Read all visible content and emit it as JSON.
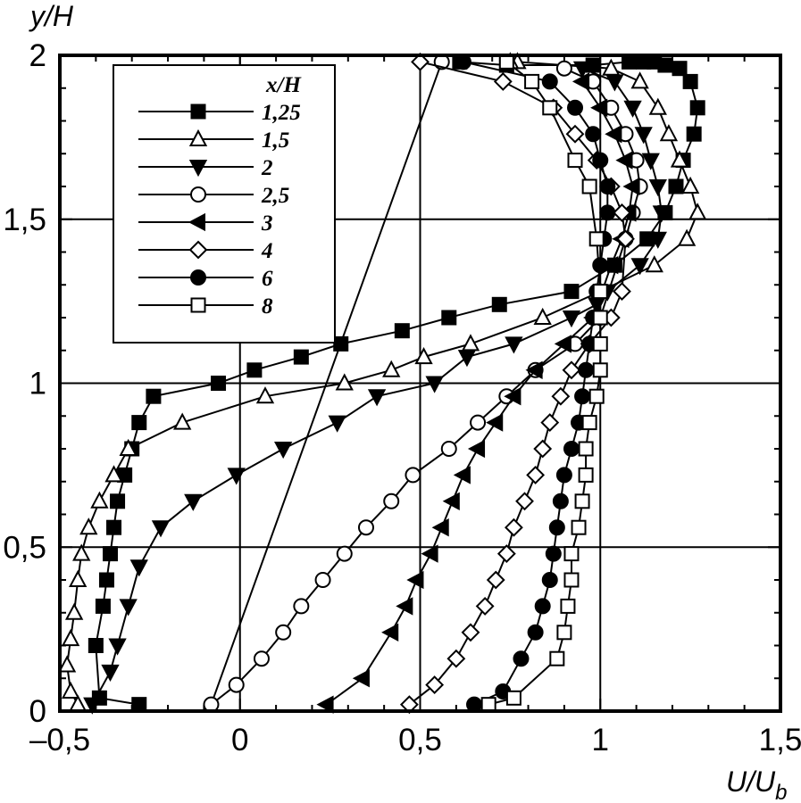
{
  "chart_data": {
    "type": "line",
    "title": "",
    "xlabel": "U/U",
    "xlabel_sub": "b",
    "ylabel": "y/H",
    "xlim": [
      -0.5,
      1.5
    ],
    "ylim": [
      0,
      2
    ],
    "xticks": [
      -0.5,
      0,
      0.5,
      1,
      1.5
    ],
    "yticks": [
      0,
      0.5,
      1,
      1.5,
      2
    ],
    "xtick_labels": [
      "–0,5",
      "0",
      "0,5",
      "1",
      "1,5"
    ],
    "ytick_labels": [
      "0",
      "0,5",
      "1",
      "1,5",
      "2"
    ],
    "grid": true,
    "legend_title": "x/H",
    "legend_position": "top-left",
    "series": [
      {
        "name": "1,25",
        "marker": "square",
        "fill": "filled",
        "x": [
          -0.28,
          -0.39,
          -0.4,
          -0.38,
          -0.37,
          -0.36,
          -0.35,
          -0.34,
          -0.32,
          -0.3,
          -0.28,
          -0.24,
          -0.06,
          0.04,
          0.17,
          0.28,
          0.45,
          0.58,
          0.72,
          0.92,
          1.04,
          1.13,
          1.18,
          1.21,
          1.23,
          1.26,
          1.27,
          1.25,
          1.22,
          1.18,
          1.15,
          1.12,
          1.08,
          0.98,
          0.74,
          0.61
        ],
        "y": [
          0.02,
          0.04,
          0.2,
          0.32,
          0.4,
          0.48,
          0.56,
          0.64,
          0.72,
          0.8,
          0.88,
          0.96,
          1.0,
          1.04,
          1.08,
          1.12,
          1.16,
          1.2,
          1.24,
          1.28,
          1.36,
          1.44,
          1.52,
          1.6,
          1.68,
          1.76,
          1.84,
          1.92,
          1.96,
          1.97,
          1.98,
          1.98,
          1.98,
          1.97,
          1.97,
          1.98
        ]
      },
      {
        "name": "1,5",
        "marker": "triangle-up",
        "fill": "open",
        "x": [
          -0.45,
          -0.47,
          -0.48,
          -0.47,
          -0.46,
          -0.45,
          -0.44,
          -0.42,
          -0.39,
          -0.35,
          -0.31,
          -0.16,
          0.07,
          0.29,
          0.42,
          0.51,
          0.64,
          0.84,
          1.0,
          1.15,
          1.24,
          1.27,
          1.25,
          1.22,
          1.19,
          1.16,
          1.11,
          1.03,
          0.77,
          0.75
        ],
        "y": [
          0.02,
          0.06,
          0.14,
          0.22,
          0.3,
          0.4,
          0.48,
          0.56,
          0.64,
          0.72,
          0.8,
          0.88,
          0.96,
          1.0,
          1.04,
          1.08,
          1.12,
          1.2,
          1.28,
          1.36,
          1.44,
          1.52,
          1.6,
          1.68,
          1.76,
          1.84,
          1.92,
          1.96,
          1.98,
          1.98
        ]
      },
      {
        "name": "2",
        "marker": "triangle-down",
        "fill": "filled",
        "x": [
          -0.41,
          -0.36,
          -0.34,
          -0.31,
          -0.28,
          -0.22,
          -0.13,
          -0.01,
          0.12,
          0.27,
          0.38,
          0.54,
          0.63,
          0.76,
          0.92,
          0.99,
          1.02,
          1.11,
          1.16,
          1.17,
          1.16,
          1.14,
          1.12,
          1.09,
          1.04,
          0.95
        ],
        "y": [
          0.02,
          0.12,
          0.2,
          0.32,
          0.44,
          0.56,
          0.64,
          0.72,
          0.8,
          0.88,
          0.96,
          1.0,
          1.08,
          1.12,
          1.2,
          1.24,
          1.28,
          1.36,
          1.44,
          1.52,
          1.6,
          1.68,
          1.76,
          1.84,
          1.92,
          1.96
        ]
      },
      {
        "name": "2,5",
        "marker": "circle",
        "fill": "open",
        "x": [
          0.56,
          -0.08,
          -0.01,
          0.06,
          0.12,
          0.17,
          0.23,
          0.29,
          0.35,
          0.42,
          0.48,
          0.58,
          0.66,
          0.74,
          0.82,
          0.93,
          1.0,
          1.07,
          1.09,
          1.11,
          1.1,
          1.07,
          1.03,
          0.98,
          0.9
        ],
        "y": [
          1.98,
          0.02,
          0.08,
          0.16,
          0.24,
          0.32,
          0.4,
          0.48,
          0.56,
          0.64,
          0.72,
          0.8,
          0.88,
          0.96,
          1.04,
          1.12,
          1.2,
          1.44,
          1.52,
          1.6,
          1.68,
          1.76,
          1.84,
          1.92,
          1.96
        ]
      },
      {
        "name": "3",
        "marker": "triangle-left",
        "fill": "filled",
        "x": [
          0.24,
          0.34,
          0.42,
          0.46,
          0.49,
          0.53,
          0.56,
          0.59,
          0.62,
          0.66,
          0.71,
          0.76,
          0.82,
          0.9,
          0.98,
          1.03,
          1.06,
          1.08,
          1.09,
          1.07,
          1.04,
          1.0,
          0.95
        ],
        "y": [
          0.02,
          0.1,
          0.24,
          0.32,
          0.4,
          0.48,
          0.56,
          0.64,
          0.72,
          0.8,
          0.88,
          0.96,
          1.04,
          1.12,
          1.2,
          1.36,
          1.44,
          1.52,
          1.6,
          1.68,
          1.76,
          1.84,
          1.92
        ]
      },
      {
        "name": "4",
        "marker": "diamond",
        "fill": "open",
        "x": [
          0.47,
          0.54,
          0.6,
          0.64,
          0.68,
          0.71,
          0.74,
          0.76,
          0.79,
          0.82,
          0.84,
          0.86,
          0.89,
          0.92,
          0.97,
          1.03,
          1.06,
          1.07,
          1.06,
          1.03,
          0.99,
          0.93,
          0.87,
          0.73,
          0.5
        ],
        "y": [
          0.02,
          0.08,
          0.16,
          0.24,
          0.32,
          0.4,
          0.48,
          0.56,
          0.64,
          0.72,
          0.8,
          0.88,
          0.96,
          1.04,
          1.12,
          1.2,
          1.28,
          1.44,
          1.52,
          1.6,
          1.68,
          1.76,
          1.84,
          1.92,
          1.98
        ]
      },
      {
        "name": "6",
        "marker": "circle",
        "fill": "filled",
        "x": [
          0.65,
          0.73,
          0.78,
          0.82,
          0.84,
          0.86,
          0.87,
          0.88,
          0.89,
          0.9,
          0.92,
          0.94,
          0.95,
          0.96,
          0.97,
          0.98,
          0.99,
          1.0,
          1.01,
          1.02,
          1.02,
          1.0,
          0.98,
          0.93,
          0.86,
          0.62
        ],
        "y": [
          0.02,
          0.06,
          0.16,
          0.24,
          0.32,
          0.4,
          0.48,
          0.56,
          0.64,
          0.72,
          0.8,
          0.88,
          0.96,
          1.04,
          1.12,
          1.2,
          1.28,
          1.36,
          1.44,
          1.52,
          1.6,
          1.68,
          1.76,
          1.84,
          1.92,
          1.98
        ]
      },
      {
        "name": "8",
        "marker": "square",
        "fill": "open",
        "x": [
          0.69,
          0.76,
          0.88,
          0.9,
          0.91,
          0.92,
          0.92,
          0.94,
          0.95,
          0.96,
          0.96,
          0.97,
          0.99,
          1.0,
          1.0,
          1.0,
          1.0,
          0.99,
          0.97,
          0.93,
          0.86,
          0.81,
          0.74
        ],
        "y": [
          0.02,
          0.04,
          0.16,
          0.24,
          0.32,
          0.4,
          0.48,
          0.56,
          0.64,
          0.72,
          0.8,
          0.88,
          0.96,
          1.04,
          1.12,
          1.2,
          1.28,
          1.44,
          1.6,
          1.68,
          1.84,
          1.92,
          1.98
        ]
      }
    ]
  }
}
